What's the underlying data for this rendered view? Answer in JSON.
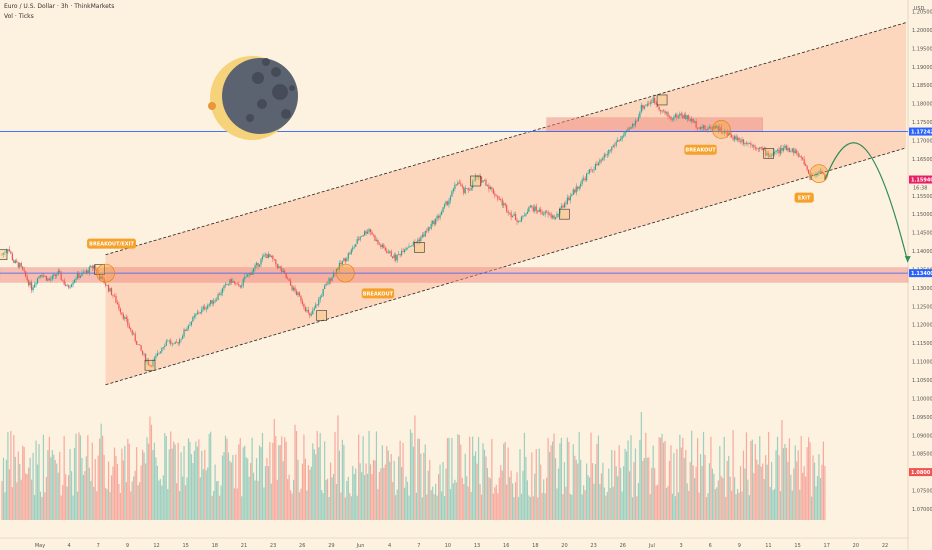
{
  "header": {
    "symbol": "Euro / U.S. Dollar · 3h · ThinkMarkets",
    "indicator": "Vol · Ticks",
    "currency": "USD"
  },
  "colors": {
    "background": "#fdf1df",
    "up": "#26a69a",
    "down": "#ef5350",
    "channel": "#fbbfa0",
    "zone": "#f28b82",
    "hline": "#2962ff",
    "annotation": "#f5a12a",
    "arrow": "#2e8b57",
    "price_tag": "#e91e63"
  },
  "chart_data": {
    "type": "candlestick",
    "title": "Euro / U.S. Dollar · 3h · ThinkMarkets",
    "y_axis_ticks": [
      "1.20500",
      "1.20000",
      "1.19500",
      "1.19000",
      "1.18500",
      "1.18000",
      "1.17500",
      "1.17000",
      "1.16500",
      "1.16000",
      "1.15500",
      "1.15000",
      "1.14500",
      "1.14000",
      "1.13500",
      "1.13000",
      "1.12500",
      "1.12000",
      "1.11500",
      "1.11000",
      "1.10500",
      "1.10000",
      "1.09500",
      "1.09000",
      "1.08500",
      "1.08000",
      "1.07500",
      "1.07000"
    ],
    "ylim": [
      1.067,
      1.2065
    ],
    "x_axis_ticks": [
      "May",
      "4",
      "7",
      "9",
      "12",
      "15",
      "18",
      "21",
      "23",
      "26",
      "29",
      "Jun",
      "4",
      "7",
      "10",
      "13",
      "16",
      "18",
      "20",
      "23",
      "26",
      "Jul",
      "3",
      "6",
      "9",
      "11",
      "15",
      "17",
      "20",
      "22"
    ],
    "price_tags": {
      "upper_line": "1.17242",
      "current": "1.15940",
      "countdown": "16:38",
      "lower_line": "1.13400",
      "volume": "1.0800"
    },
    "horizontal_lines": [
      1.17242,
      1.134
    ],
    "zones": [
      {
        "low": 1.1315,
        "high": 1.1355
      },
      {
        "low": 1.17242,
        "high": 1.1762
      }
    ],
    "channel": {
      "type": "ascending",
      "upper_start": 1.139,
      "upper_end": 1.202,
      "lower_start": 1.1037,
      "lower_end": 1.168
    },
    "annotations": [
      "BREAKOUT/EXIT",
      "BREAKOUT",
      "BREAKOUT",
      "EXIT"
    ],
    "close_path": [
      [
        0,
        1.139
      ],
      [
        4,
        1.141
      ],
      [
        8,
        1.137
      ],
      [
        12,
        1.136
      ],
      [
        16,
        1.133
      ],
      [
        20,
        1.13
      ],
      [
        26,
        1.134
      ],
      [
        32,
        1.132
      ],
      [
        38,
        1.134
      ],
      [
        44,
        1.13
      ],
      [
        50,
        1.133
      ],
      [
        56,
        1.134
      ],
      [
        62,
        1.136
      ],
      [
        66,
        1.133
      ],
      [
        70,
        1.131
      ],
      [
        75,
        1.128
      ],
      [
        80,
        1.124
      ],
      [
        85,
        1.12
      ],
      [
        90,
        1.116
      ],
      [
        95,
        1.112
      ],
      [
        100,
        1.109
      ],
      [
        104,
        1.111
      ],
      [
        108,
        1.114
      ],
      [
        112,
        1.116
      ],
      [
        116,
        1.114
      ],
      [
        120,
        1.116
      ],
      [
        126,
        1.12
      ],
      [
        132,
        1.123
      ],
      [
        138,
        1.125
      ],
      [
        144,
        1.127
      ],
      [
        150,
        1.13
      ],
      [
        155,
        1.132
      ],
      [
        160,
        1.13
      ],
      [
        165,
        1.133
      ],
      [
        170,
        1.135
      ],
      [
        174,
        1.137
      ],
      [
        178,
        1.139
      ],
      [
        182,
        1.138
      ],
      [
        186,
        1.136
      ],
      [
        190,
        1.134
      ],
      [
        196,
        1.13
      ],
      [
        202,
        1.127
      ],
      [
        208,
        1.122
      ],
      [
        212,
        1.125
      ],
      [
        218,
        1.13
      ],
      [
        224,
        1.134
      ],
      [
        230,
        1.137
      ],
      [
        236,
        1.14
      ],
      [
        242,
        1.144
      ],
      [
        248,
        1.146
      ],
      [
        254,
        1.142
      ],
      [
        260,
        1.14
      ],
      [
        266,
        1.138
      ],
      [
        272,
        1.141
      ],
      [
        278,
        1.142
      ],
      [
        284,
        1.144
      ],
      [
        290,
        1.147
      ],
      [
        296,
        1.15
      ],
      [
        302,
        1.154
      ],
      [
        308,
        1.159
      ],
      [
        312,
        1.156
      ],
      [
        316,
        1.157
      ],
      [
        320,
        1.16
      ],
      [
        326,
        1.159
      ],
      [
        332,
        1.156
      ],
      [
        338,
        1.153
      ],
      [
        344,
        1.15
      ],
      [
        350,
        1.148
      ],
      [
        356,
        1.152
      ],
      [
        362,
        1.151
      ],
      [
        368,
        1.15
      ],
      [
        374,
        1.149
      ],
      [
        380,
        1.153
      ],
      [
        386,
        1.156
      ],
      [
        392,
        1.159
      ],
      [
        398,
        1.162
      ],
      [
        404,
        1.164
      ],
      [
        410,
        1.167
      ],
      [
        416,
        1.17
      ],
      [
        422,
        1.172
      ],
      [
        428,
        1.175
      ],
      [
        432,
        1.179
      ],
      [
        436,
        1.18
      ],
      [
        440,
        1.181
      ],
      [
        446,
        1.178
      ],
      [
        452,
        1.176
      ],
      [
        458,
        1.177
      ],
      [
        464,
        1.176
      ],
      [
        470,
        1.174
      ],
      [
        476,
        1.173
      ],
      [
        482,
        1.174
      ],
      [
        488,
        1.172
      ],
      [
        494,
        1.171
      ],
      [
        500,
        1.17
      ],
      [
        506,
        1.169
      ],
      [
        512,
        1.168
      ],
      [
        518,
        1.166
      ],
      [
        524,
        1.167
      ],
      [
        530,
        1.168
      ],
      [
        536,
        1.167
      ],
      [
        542,
        1.164
      ],
      [
        546,
        1.16
      ],
      [
        550,
        1.161
      ],
      [
        554,
        1.162
      ],
      [
        556,
        1.1594
      ]
    ],
    "projection": [
      [
        556,
        1.1594
      ],
      [
        570,
        1.166
      ],
      [
        586,
        1.168
      ],
      [
        600,
        1.156
      ],
      [
        612,
        1.137
      ]
    ]
  }
}
